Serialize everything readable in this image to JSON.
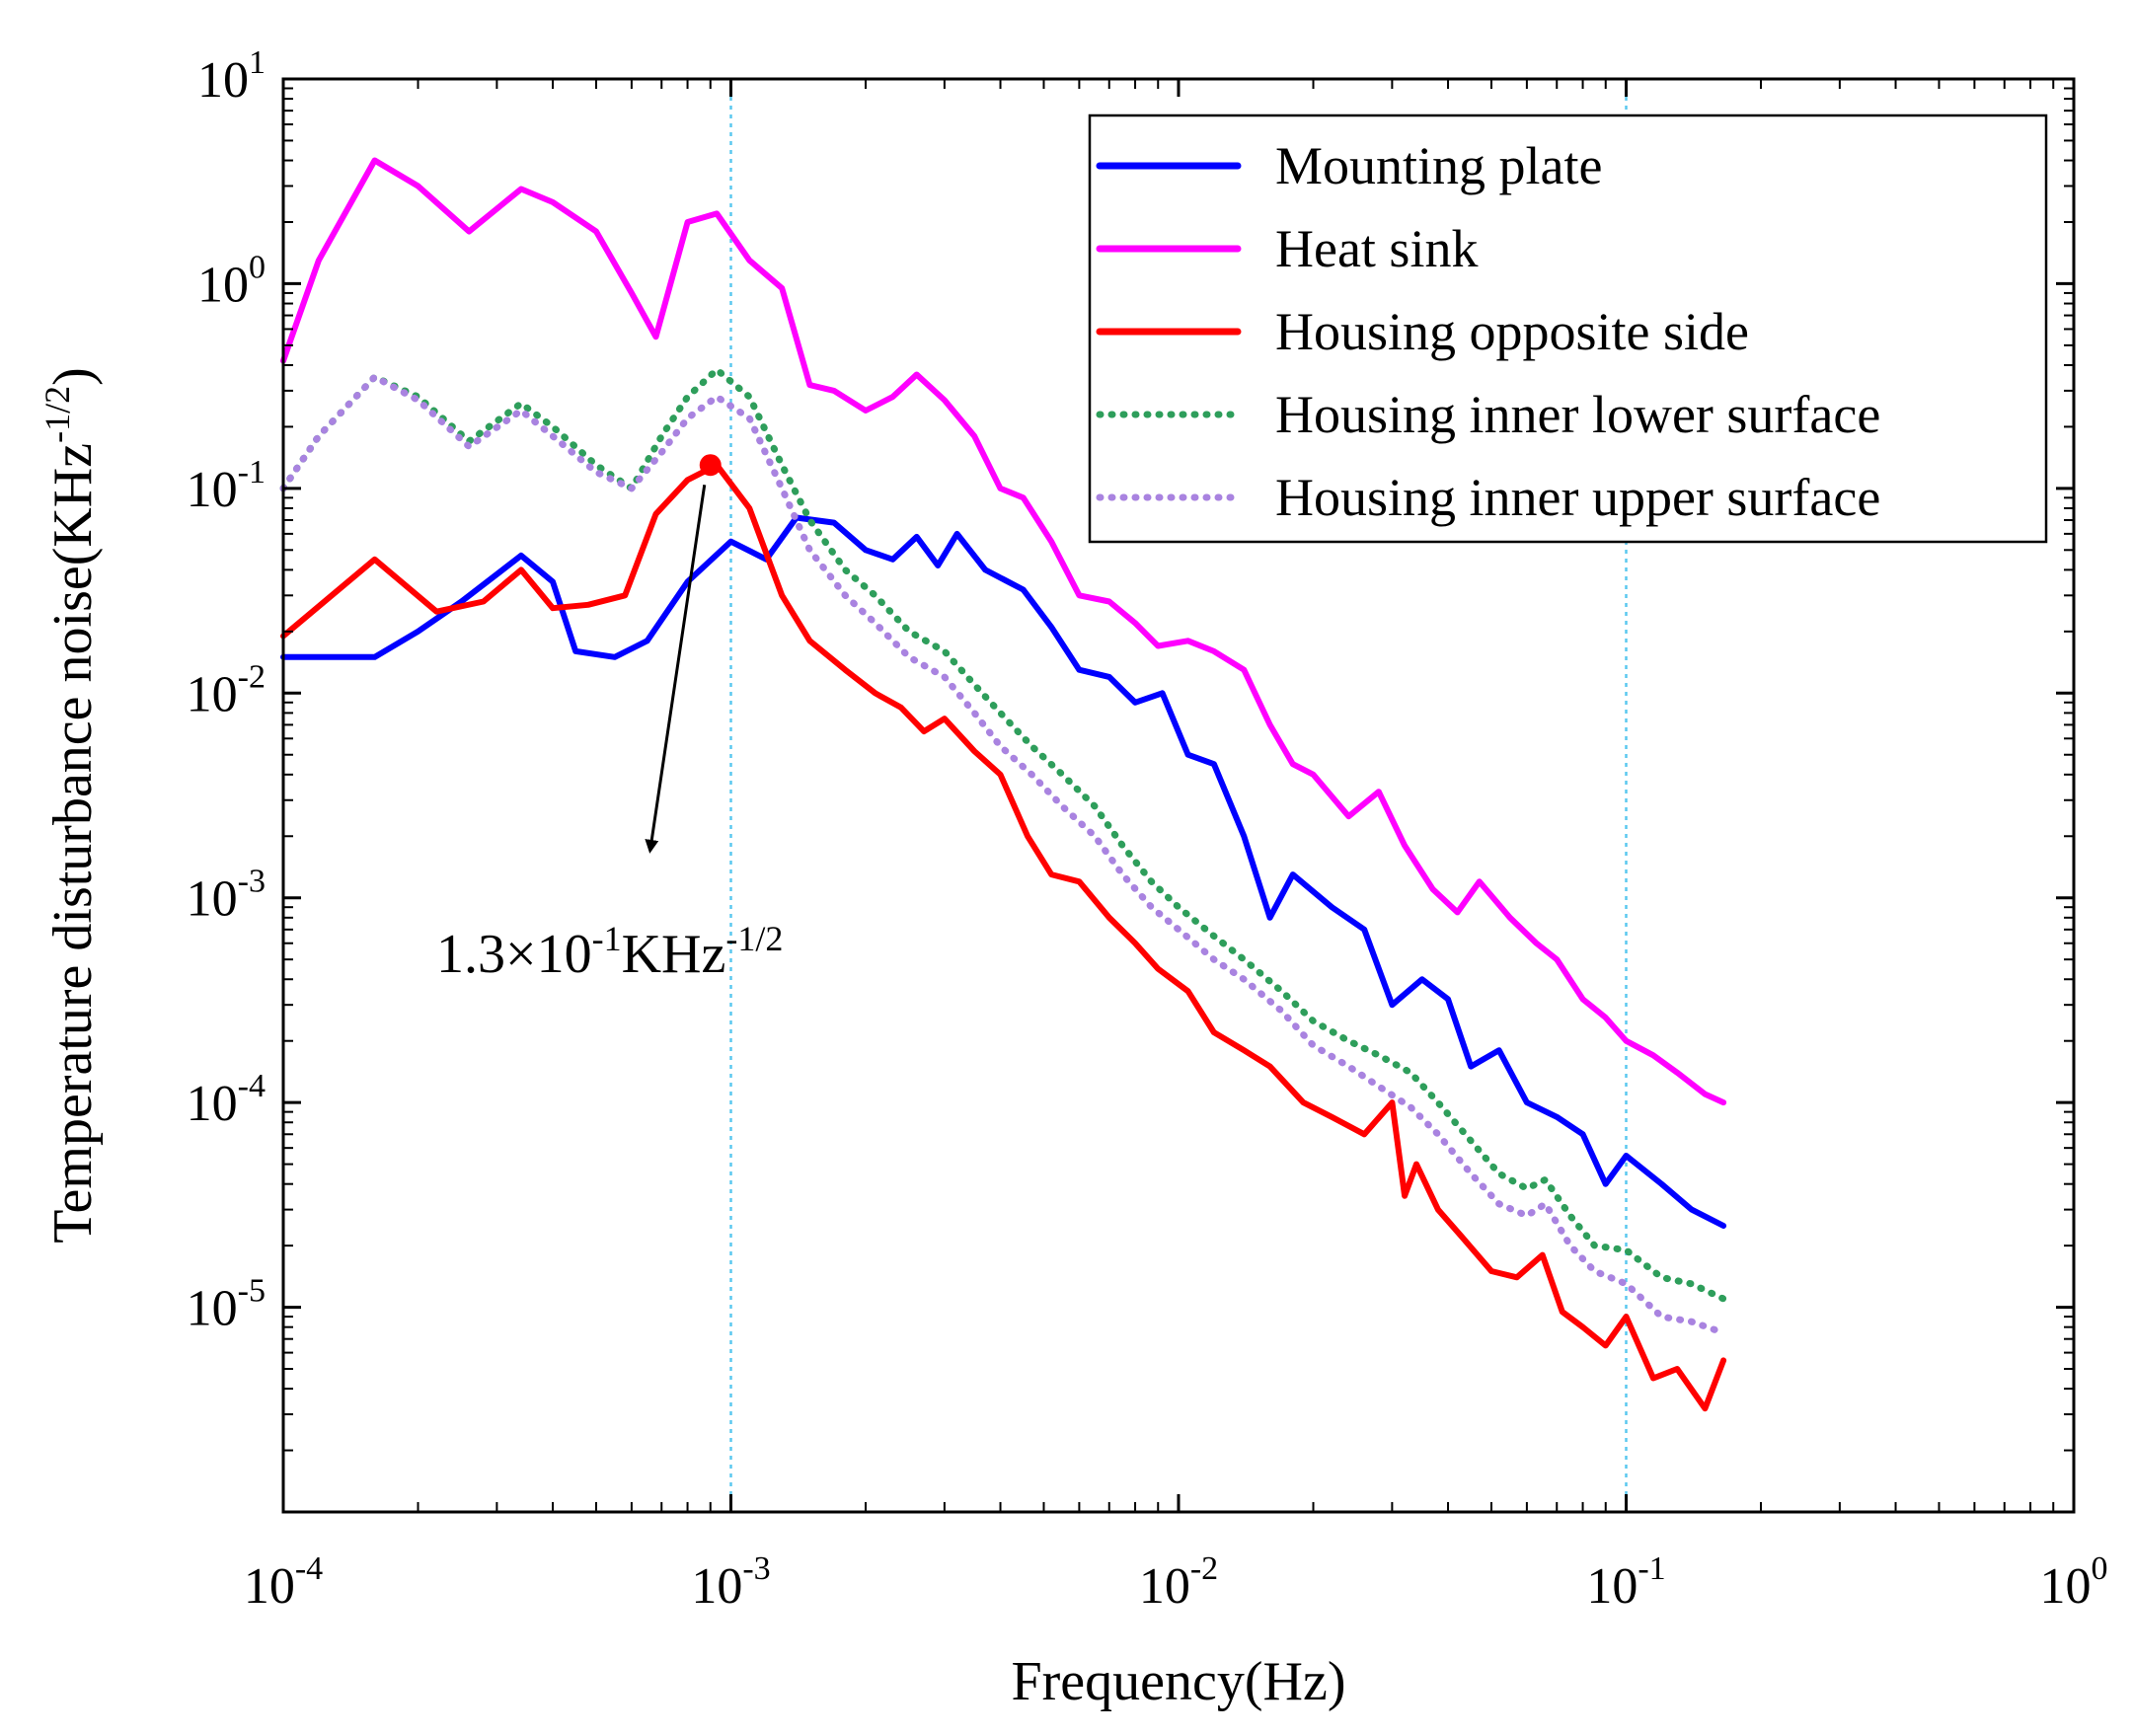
{
  "chart_data": {
    "type": "line",
    "title": "",
    "xlabel": "Frequency(Hz)",
    "ylabel": "Temperature disturbance noise(KHz",
    "ylabel_exponent": "-1/2",
    "ylabel_close": ")",
    "xscale": "log",
    "yscale": "log",
    "xlim": [
      0.0001,
      1
    ],
    "ylim": [
      1e-06,
      10
    ],
    "x_ticks": [
      {
        "value": 0.0001,
        "base": "10",
        "exp": "-4"
      },
      {
        "value": 0.001,
        "base": "10",
        "exp": "-3"
      },
      {
        "value": 0.01,
        "base": "10",
        "exp": "-2"
      },
      {
        "value": 0.1,
        "base": "10",
        "exp": "-1"
      },
      {
        "value": 1,
        "base": "10",
        "exp": "0"
      }
    ],
    "y_ticks": [
      {
        "value": 10,
        "base": "10",
        "exp": "1"
      },
      {
        "value": 1,
        "base": "10",
        "exp": "0"
      },
      {
        "value": 0.1,
        "base": "10",
        "exp": "-1"
      },
      {
        "value": 0.01,
        "base": "10",
        "exp": "-2"
      },
      {
        "value": 0.001,
        "base": "10",
        "exp": "-3"
      },
      {
        "value": 0.0001,
        "base": "10",
        "exp": "-4"
      },
      {
        "value": 1e-05,
        "base": "10",
        "exp": "-5"
      }
    ],
    "reference_lines_x": [
      0.001,
      0.1
    ],
    "legend_position": "top-right",
    "series": [
      {
        "name": "Mounting plate",
        "color": "#0000ff",
        "style": "solid",
        "x": [
          0.0001,
          0.00016,
          0.0002,
          0.00025,
          0.00034,
          0.0004,
          0.00045,
          0.00055,
          0.00065,
          0.0008,
          0.001,
          0.0012,
          0.0014,
          0.0017,
          0.002,
          0.0023,
          0.0026,
          0.0029,
          0.0032,
          0.0037,
          0.0045,
          0.0052,
          0.006,
          0.007,
          0.008,
          0.0092,
          0.0105,
          0.012,
          0.014,
          0.016,
          0.018,
          0.022,
          0.026,
          0.03,
          0.035,
          0.04,
          0.045,
          0.052,
          0.06,
          0.07,
          0.08,
          0.09,
          0.1,
          0.12,
          0.14,
          0.165
        ],
        "y": [
          0.015,
          0.015,
          0.02,
          0.028,
          0.047,
          0.035,
          0.016,
          0.015,
          0.018,
          0.035,
          0.055,
          0.045,
          0.072,
          0.068,
          0.05,
          0.045,
          0.058,
          0.042,
          0.06,
          0.04,
          0.032,
          0.021,
          0.013,
          0.012,
          0.009,
          0.01,
          0.005,
          0.0045,
          0.002,
          0.0008,
          0.0013,
          0.0009,
          0.0007,
          0.0003,
          0.0004,
          0.00032,
          0.00015,
          0.00018,
          0.0001,
          8.5e-05,
          7e-05,
          4e-05,
          5.5e-05,
          4e-05,
          3e-05,
          2.5e-05
        ]
      },
      {
        "name": "Heat sink",
        "color": "#ff00ff",
        "style": "solid",
        "x": [
          0.0001,
          0.00012,
          0.00016,
          0.0002,
          0.00026,
          0.00034,
          0.0004,
          0.0005,
          0.0006,
          0.00068,
          0.0008,
          0.00093,
          0.0011,
          0.0013,
          0.0015,
          0.0017,
          0.002,
          0.0023,
          0.0026,
          0.003,
          0.0035,
          0.004,
          0.0045,
          0.0052,
          0.006,
          0.007,
          0.008,
          0.009,
          0.0105,
          0.012,
          0.014,
          0.016,
          0.018,
          0.02,
          0.024,
          0.028,
          0.032,
          0.037,
          0.042,
          0.047,
          0.055,
          0.063,
          0.07,
          0.08,
          0.09,
          0.1,
          0.115,
          0.13,
          0.15,
          0.165
        ],
        "y": [
          0.42,
          1.3,
          4.0,
          3.0,
          1.8,
          2.9,
          2.5,
          1.8,
          0.9,
          0.55,
          2.0,
          2.2,
          1.3,
          0.95,
          0.32,
          0.3,
          0.24,
          0.28,
          0.36,
          0.27,
          0.18,
          0.1,
          0.09,
          0.055,
          0.03,
          0.028,
          0.022,
          0.017,
          0.018,
          0.016,
          0.013,
          0.007,
          0.0045,
          0.004,
          0.0025,
          0.0033,
          0.0018,
          0.0011,
          0.00085,
          0.0012,
          0.0008,
          0.0006,
          0.0005,
          0.00032,
          0.00026,
          0.0002,
          0.00017,
          0.00014,
          0.00011,
          0.0001
        ]
      },
      {
        "name": "Housing opposite side",
        "color": "#ff0000",
        "style": "solid",
        "x": [
          0.0001,
          0.00016,
          0.00022,
          0.00028,
          0.00034,
          0.0004,
          0.00048,
          0.00058,
          0.00068,
          0.0008,
          0.00093,
          0.0011,
          0.0013,
          0.0015,
          0.0018,
          0.0021,
          0.0024,
          0.0027,
          0.003,
          0.0035,
          0.004,
          0.0046,
          0.0052,
          0.006,
          0.007,
          0.008,
          0.009,
          0.0105,
          0.012,
          0.014,
          0.016,
          0.019,
          0.022,
          0.026,
          0.03,
          0.032,
          0.034,
          0.038,
          0.043,
          0.05,
          0.057,
          0.065,
          0.072,
          0.08,
          0.09,
          0.1,
          0.115,
          0.13,
          0.15,
          0.165
        ],
        "y": [
          0.019,
          0.045,
          0.025,
          0.028,
          0.04,
          0.026,
          0.027,
          0.03,
          0.075,
          0.11,
          0.13,
          0.08,
          0.03,
          0.018,
          0.013,
          0.01,
          0.0085,
          0.0065,
          0.0075,
          0.0052,
          0.004,
          0.002,
          0.0013,
          0.0012,
          0.0008,
          0.0006,
          0.00045,
          0.00035,
          0.00022,
          0.00018,
          0.00015,
          0.0001,
          8.5e-05,
          7e-05,
          0.0001,
          3.5e-05,
          5e-05,
          3e-05,
          2.2e-05,
          1.5e-05,
          1.4e-05,
          1.8e-05,
          9.5e-06,
          8e-06,
          6.5e-06,
          9e-06,
          4.5e-06,
          5e-06,
          3.2e-06,
          5.5e-06
        ]
      },
      {
        "name": "Housing inner lower surface",
        "color": "#2e9e5b",
        "style": "dotted",
        "x": [
          0.0001,
          0.00012,
          0.00016,
          0.0002,
          0.00026,
          0.00034,
          0.0004,
          0.0005,
          0.0006,
          0.0007,
          0.0008,
          0.00093,
          0.0011,
          0.0013,
          0.0015,
          0.0018,
          0.0021,
          0.0025,
          0.003,
          0.0035,
          0.004,
          0.0047,
          0.0055,
          0.0065,
          0.0075,
          0.0087,
          0.01,
          0.012,
          0.014,
          0.017,
          0.02,
          0.024,
          0.028,
          0.033,
          0.038,
          0.045,
          0.052,
          0.06,
          0.066,
          0.075,
          0.085,
          0.1,
          0.12,
          0.14,
          0.165
        ],
        "y": [
          0.1,
          0.18,
          0.35,
          0.28,
          0.17,
          0.26,
          0.2,
          0.13,
          0.1,
          0.18,
          0.28,
          0.38,
          0.28,
          0.13,
          0.07,
          0.04,
          0.03,
          0.02,
          0.016,
          0.011,
          0.008,
          0.0055,
          0.004,
          0.0028,
          0.0018,
          0.0012,
          0.0009,
          0.00065,
          0.0005,
          0.00035,
          0.00025,
          0.0002,
          0.00017,
          0.00014,
          0.0001,
          6.5e-05,
          4.5e-05,
          3.8e-05,
          4.2e-05,
          2.8e-05,
          2e-05,
          1.9e-05,
          1.4e-05,
          1.3e-05,
          1.1e-05
        ]
      },
      {
        "name": "Housing inner upper surface",
        "color": "#a983e0",
        "style": "dotted",
        "x": [
          0.0001,
          0.00012,
          0.00016,
          0.0002,
          0.00026,
          0.00034,
          0.0004,
          0.0005,
          0.0006,
          0.0007,
          0.0008,
          0.00093,
          0.0011,
          0.0013,
          0.0015,
          0.0018,
          0.0021,
          0.0025,
          0.003,
          0.0035,
          0.004,
          0.0047,
          0.0055,
          0.0065,
          0.0075,
          0.0087,
          0.01,
          0.012,
          0.014,
          0.017,
          0.02,
          0.024,
          0.028,
          0.033,
          0.038,
          0.045,
          0.052,
          0.06,
          0.066,
          0.075,
          0.085,
          0.1,
          0.12,
          0.14,
          0.165
        ],
        "y": [
          0.1,
          0.18,
          0.35,
          0.27,
          0.16,
          0.24,
          0.18,
          0.12,
          0.1,
          0.15,
          0.22,
          0.28,
          0.22,
          0.1,
          0.05,
          0.03,
          0.022,
          0.015,
          0.012,
          0.008,
          0.0055,
          0.004,
          0.0028,
          0.002,
          0.0013,
          0.0009,
          0.0007,
          0.0005,
          0.0004,
          0.00028,
          0.00019,
          0.00015,
          0.00012,
          9.5e-05,
          7e-05,
          4.5e-05,
          3.2e-05,
          2.8e-05,
          3.2e-05,
          2e-05,
          1.5e-05,
          1.3e-05,
          9e-06,
          8.5e-06,
          7.5e-06
        ]
      }
    ],
    "annotation": {
      "text_base": "1.3×10",
      "text_exp1": "-1",
      "text_unit": "KHz",
      "text_exp2": "-1/2",
      "point_x": 0.0009,
      "point_y": 0.13,
      "arrow_to_x": 0.00066,
      "arrow_to_y": 0.0017
    }
  }
}
